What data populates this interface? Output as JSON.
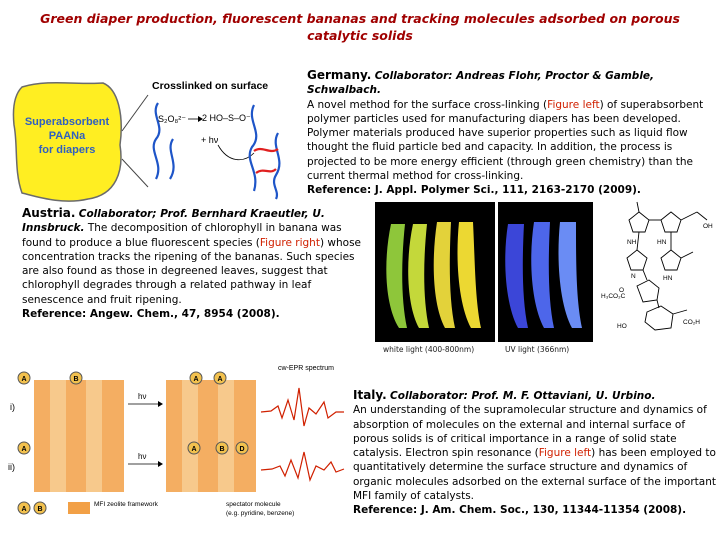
{
  "title": "Green diaper production, fluorescent bananas and tracking molecules adsorbed on porous catalytic solids",
  "germany": {
    "country": "Germany.",
    "collaborator": "Collaborator: Andreas Flohr, Proctor & Gamble, Schwalbach.",
    "text1": "A novel method for the surface cross-linking (",
    "figure": "Figure left",
    "text2": ") of superabsorbent polymer particles used for manufacturing diapers has been developed. Polymer materials produced have superior properties such as liquid flow thought the fluid particle bed and capacity. In addition, the process is projected to be more energy efficient (through green chemistry) than the current thermal method for cross-linking.",
    "reference": "Reference: J. Appl. Polymer Sci., 111, 2163-2170 (2009).",
    "figure_panel": {
      "heading": "Crosslinked on surface",
      "box_label_1": "Superabsorbent",
      "box_label_2": "PAANa",
      "box_label_3": "for diapers",
      "chem_left": "S₂O₈²⁻",
      "chem_right": "2 HO–S–O⁻",
      "hv": "+ hν"
    }
  },
  "austria": {
    "country": "Austria.",
    "collaborator": "Collaborator; Prof. Bernhard Kraeutler, U. Innsbruck.",
    "text1": "The decomposition of chlorophyll in banana was found to produce a blue fluorescent species (",
    "figure": "Figure right",
    "text2": ") whose concentration tracks the ripening of the bananas. Such species are also found as those in degreened leaves, suggest that chlorophyll degrades through a related pathway in leaf senescence and fruit ripening.",
    "reference": "Reference: Angew. Chem., 47, 8954 (2008).",
    "caption_white": "white light (400-800nm)",
    "caption_uv": "UV light (366nm)",
    "chem_labels": [
      "NH",
      "HN",
      "OH",
      "H₃CO₂C",
      "HO",
      "CO₂H",
      "O",
      "N",
      "HN"
    ]
  },
  "italy": {
    "country": "Italy.",
    "collaborator": "Collaborator: Prof. M. F. Ottaviani, U. Urbino.",
    "text1": "An understanding of the supramolecular structure and dynamics of absorption of molecules on the external and internal surface of porous solids is of critical importance in a range of solid state catalysis. Electron spin resonance (",
    "figure": "Figure left",
    "text2": ") has been employed to quantitatively determine the surface structure and dynamics of organic molecules adsorbed on the external surface of the important MFI family of catalysts.",
    "reference": "Reference: J. Am. Chem. Soc., 130, 11344-11354 (2008).",
    "figure_panel": {
      "spectrum_label": "cw-EPR spectrum",
      "row_label_1": "i)",
      "row_label_2": "ii)",
      "hv": "hν",
      "legend_1": "MFI zeolite framework",
      "legend_2a": "spectator molecule",
      "legend_2b": "(e.g. pyridine, benzene)",
      "letters": [
        "A",
        "B",
        "C",
        "D"
      ]
    }
  },
  "colors": {
    "title": "#a00000",
    "highlight": "#d02000",
    "polymer_yellow": "#ffee22",
    "polymer_label_blue": "#3060c0",
    "uv_blue": "#3b46d8",
    "zeolite_orange": "#f2a046"
  }
}
